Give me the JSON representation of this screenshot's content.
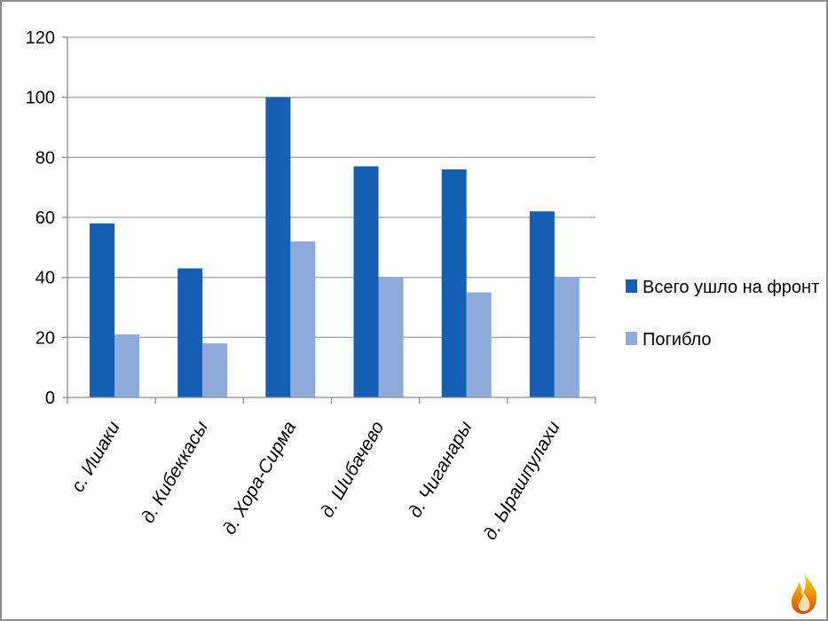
{
  "chart_data": {
    "type": "bar",
    "categories": [
      "с. Ишаки",
      "д. Кибеккасы",
      "д. Хора-Сирма",
      "д. Шибачево",
      "д. Чиганары",
      "д. Ырашпулахи"
    ],
    "series": [
      {
        "name": "Всего ушло на фронт",
        "values": [
          58,
          43,
          100,
          77,
          76,
          62
        ],
        "color": "#1560b4"
      },
      {
        "name": "Погибло",
        "values": [
          21,
          18,
          52,
          40,
          35,
          40
        ],
        "color": "#8eabd9"
      }
    ],
    "yticks": [
      "0",
      "20",
      "40",
      "60",
      "80",
      "100",
      "120"
    ],
    "ylim": [
      0,
      120
    ],
    "grid": true,
    "legend_position": "right"
  },
  "colors": {
    "grid": "#a6a6a6",
    "axis": "#8c8c8c",
    "frame": "#8c8c8c"
  },
  "decor": {
    "logo_icon": "flame-icon"
  }
}
